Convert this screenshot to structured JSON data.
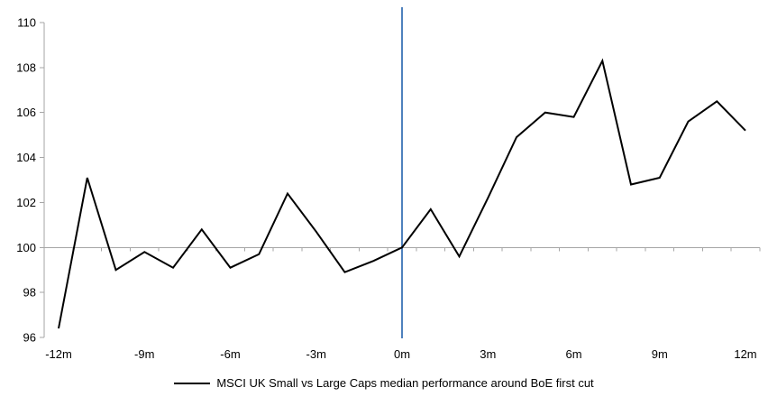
{
  "chart": {
    "legend": {
      "label": "MSCI UK Small vs Large Caps median performance around BoE first cut"
    },
    "colors": {
      "series_line": "#000000",
      "event_line": "#4F81BD",
      "baseline_line": "#A6A6A6",
      "axis": "#A6A6A6",
      "label_text": "#000000",
      "background": "#FFFFFF"
    }
  },
  "chart_data": {
    "type": "line",
    "title": "",
    "xlabel": "",
    "ylabel": "",
    "x_unit": "months relative to BoE first rate cut",
    "x": [
      -12,
      -11,
      -10,
      -9,
      -8,
      -7,
      -6,
      -5,
      -4,
      -3,
      -2,
      -1,
      0,
      1,
      2,
      3,
      4,
      5,
      6,
      7,
      8,
      9,
      10,
      11,
      12
    ],
    "series": [
      {
        "name": "MSCI UK Small vs Large Caps median performance around BoE first cut",
        "values": [
          96.4,
          103.1,
          99.0,
          99.8,
          99.1,
          100.8,
          99.1,
          99.7,
          102.4,
          100.7,
          98.9,
          99.4,
          100.0,
          101.7,
          99.6,
          102.2,
          104.9,
          106.0,
          105.8,
          108.3,
          102.8,
          103.1,
          105.6,
          106.5,
          105.2
        ]
      }
    ],
    "ylim": [
      96,
      110
    ],
    "yticks": [
      96,
      98,
      100,
      102,
      104,
      106,
      108,
      110
    ],
    "x_ticks": [
      {
        "value": -12,
        "label": "-12m"
      },
      {
        "value": -9,
        "label": "-9m"
      },
      {
        "value": -6,
        "label": "-6m"
      },
      {
        "value": -3,
        "label": "-3m"
      },
      {
        "value": 0,
        "label": "0m"
      },
      {
        "value": 3,
        "label": "3m"
      },
      {
        "value": 6,
        "label": "6m"
      },
      {
        "value": 9,
        "label": "9m"
      },
      {
        "value": 12,
        "label": "12m"
      }
    ],
    "baseline_y": 100,
    "event_x": 0,
    "grid": false,
    "legend_position": "bottom"
  }
}
